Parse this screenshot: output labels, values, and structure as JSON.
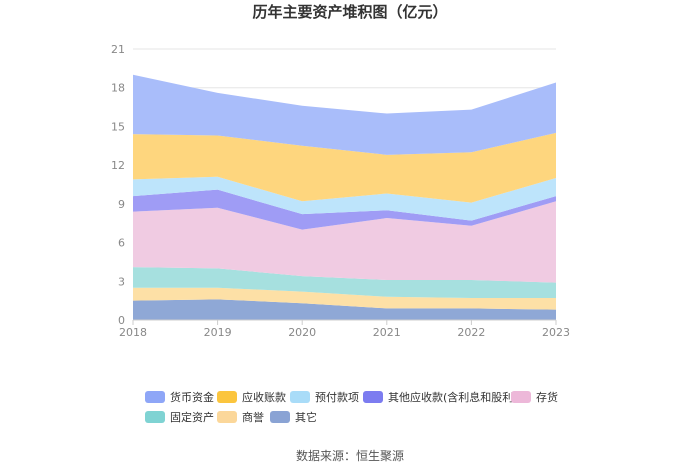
{
  "chart_data": {
    "type": "area",
    "stacked": true,
    "title": "历年主要资产堆积图（亿元）",
    "xlabel": "",
    "ylabel": "",
    "x": [
      "2018",
      "2019",
      "2020",
      "2021",
      "2022",
      "2023"
    ],
    "ylim": [
      0,
      21
    ],
    "yticks": [
      "0",
      "3",
      "6",
      "9",
      "12",
      "15",
      "18",
      "21"
    ],
    "grid": true,
    "legend_position": "bottom",
    "series": [
      {
        "name": "其它",
        "color": "#8fa8d6",
        "values": [
          1.5,
          1.6,
          1.3,
          0.9,
          0.9,
          0.8
        ]
      },
      {
        "name": "商誉",
        "color": "#fde0a6",
        "values": [
          1.0,
          0.9,
          0.9,
          0.9,
          0.8,
          0.9
        ]
      },
      {
        "name": "固定资产",
        "color": "#a6e0df",
        "values": [
          1.6,
          1.5,
          1.2,
          1.3,
          1.4,
          1.2
        ]
      },
      {
        "name": "存货",
        "color": "#f0cbe2",
        "values": [
          4.3,
          4.7,
          3.6,
          4.8,
          4.2,
          6.3
        ]
      },
      {
        "name": "其他应收款(含利息和股利)",
        "color": "#9f9cf5",
        "values": [
          1.2,
          1.4,
          1.2,
          0.6,
          0.4,
          0.4
        ]
      },
      {
        "name": "预付款项",
        "color": "#bde4fb",
        "values": [
          1.3,
          1.0,
          1.0,
          1.3,
          1.4,
          1.4
        ]
      },
      {
        "name": "应收账款",
        "color": "#fed67e",
        "values": [
          3.5,
          3.2,
          4.3,
          3.0,
          3.9,
          3.5
        ]
      },
      {
        "name": "货币资金",
        "color": "#a9bdfa",
        "values": [
          4.6,
          3.3,
          3.1,
          3.2,
          3.3,
          3.9
        ]
      }
    ],
    "legend_order": [
      "货币资金",
      "应收账款",
      "预付款项",
      "其他应收款(含利息和股利)",
      "存货",
      "固定资产",
      "商誉",
      "其它"
    ],
    "legend_colors": {
      "货币资金": "#8ea6f7",
      "应收账款": "#fbc53e",
      "预付款项": "#a9dcf8",
      "其他应收款(含利息和股利)": "#7c7cf0",
      "存货": "#edb8d9",
      "固定资产": "#7fd3d3",
      "商誉": "#fbd79a",
      "其它": "#8aa3d4"
    }
  },
  "source": "数据来源：恒生聚源"
}
